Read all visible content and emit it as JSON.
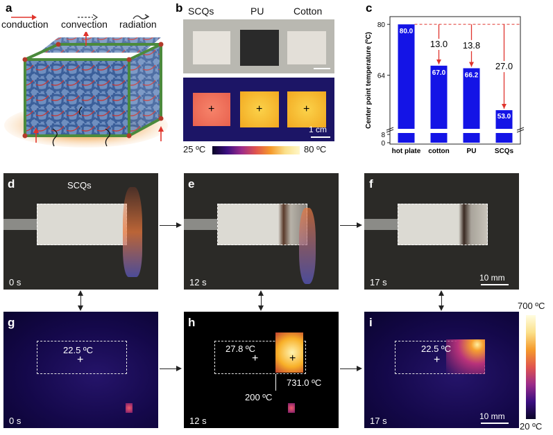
{
  "panels": {
    "a": "a",
    "b": "b",
    "c": "c",
    "d": "d",
    "e": "e",
    "f": "f",
    "g": "g",
    "h": "h",
    "i": "i"
  },
  "panel_a": {
    "legend": [
      "conduction",
      "convection",
      "radiation"
    ],
    "legend_colors": [
      "#e0342c",
      "#333333",
      "#333333"
    ]
  },
  "panel_b": {
    "sample_labels": [
      "SCQs",
      "PU",
      "Cotton"
    ],
    "scale_label": "1 cm",
    "colorbar_min": "25 ºC",
    "colorbar_max": "80 ºC"
  },
  "chart_data": {
    "type": "bar",
    "categories": [
      "hot plate",
      "cotton",
      "PU",
      "SCQs"
    ],
    "values": [
      80.0,
      67.0,
      66.2,
      53.0
    ],
    "value_labels": [
      "80.0",
      "67.0",
      "66.2",
      "53.0"
    ],
    "differences": [
      {
        "from": "hot plate",
        "to": "cotton",
        "value": 13.0,
        "label": "13.0"
      },
      {
        "from": "hot plate",
        "to": "PU",
        "value": 13.8,
        "label": "13.8"
      },
      {
        "from": "hot plate",
        "to": "SCQs",
        "value": 27.0,
        "label": "27.0"
      }
    ],
    "ylabel": "Center point temperature (ºC)",
    "yticks": [
      "0",
      "8",
      "64",
      "80"
    ],
    "ylim": [
      0,
      82
    ],
    "axis_break": true,
    "bar_color": "#1414e6",
    "diff_color": "#e0342c"
  },
  "panel_d": {
    "sample": "SCQs",
    "time": "0 s"
  },
  "panel_e": {
    "time": "12 s"
  },
  "panel_f": {
    "time": "17 s",
    "scale_label": "10 mm"
  },
  "panel_g": {
    "time": "0 s",
    "temp": "22.5 ºC"
  },
  "panel_h": {
    "time": "12 s",
    "temp_left": "27.8 ºC",
    "temp_right": "731.0 ºC",
    "temp_front": "200 ºC"
  },
  "panel_i": {
    "time": "17 s",
    "temp": "22.5 ºC",
    "scale_label": "10 mm"
  },
  "colorbar_right": {
    "max": "700 ºC",
    "min": "20 ºC"
  }
}
